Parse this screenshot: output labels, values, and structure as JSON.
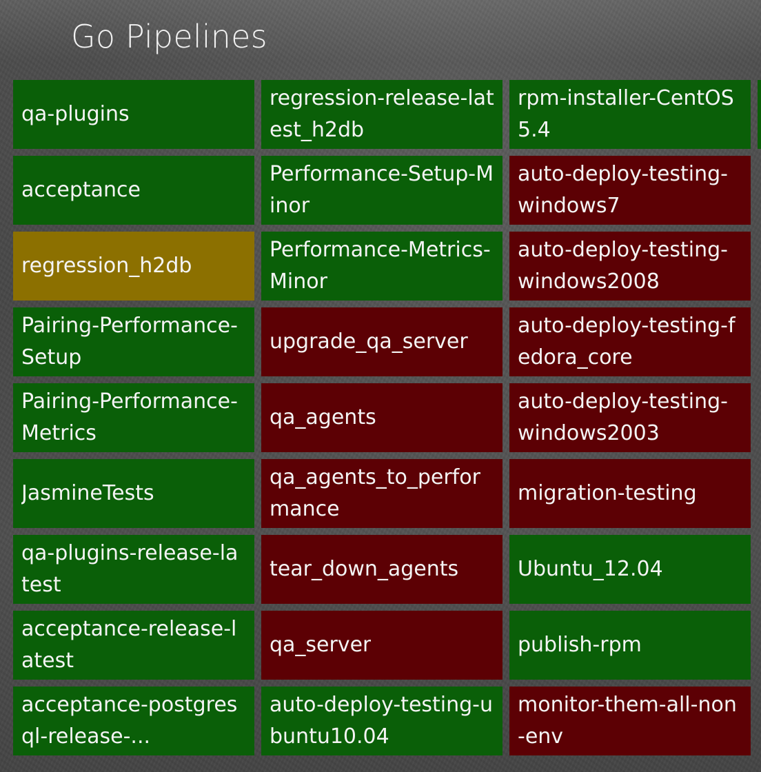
{
  "header": {
    "title": "Go Pipelines"
  },
  "colors": {
    "passed": "#0a5f08",
    "failed": "#5c0004",
    "building": "#8c7000"
  },
  "columns": [
    [
      {
        "name": "qa-plugins",
        "status": "passed"
      },
      {
        "name": "acceptance",
        "status": "passed"
      },
      {
        "name": "regression_h2db",
        "status": "building"
      },
      {
        "name": "Pairing-Performance-Setup",
        "status": "passed"
      },
      {
        "name": "Pairing-Performance-Metrics",
        "status": "passed"
      },
      {
        "name": "JasmineTests",
        "status": "passed"
      },
      {
        "name": "qa-plugins-release-latest",
        "status": "passed"
      },
      {
        "name": "acceptance-release-latest",
        "status": "passed"
      },
      {
        "name": "acceptance-postgresql-release-...",
        "status": "passed"
      }
    ],
    [
      {
        "name": "regression-release-latest_h2db",
        "status": "passed"
      },
      {
        "name": "Performance-Setup-Minor",
        "status": "passed"
      },
      {
        "name": "Performance-Metrics-Minor",
        "status": "passed"
      },
      {
        "name": "upgrade_qa_server",
        "status": "failed"
      },
      {
        "name": "qa_agents",
        "status": "failed"
      },
      {
        "name": "qa_agents_to_performance",
        "status": "failed"
      },
      {
        "name": "tear_down_agents",
        "status": "failed"
      },
      {
        "name": "qa_server",
        "status": "failed"
      },
      {
        "name": "auto-deploy-testing-ubuntu10.04",
        "status": "passed"
      }
    ],
    [
      {
        "name": "rpm-installer-CentOS5.4",
        "status": "passed"
      },
      {
        "name": "auto-deploy-testing-windows7",
        "status": "failed"
      },
      {
        "name": "auto-deploy-testing-windows2008",
        "status": "failed"
      },
      {
        "name": "auto-deploy-testing-fedora_core",
        "status": "failed"
      },
      {
        "name": "auto-deploy-testing-windows2003",
        "status": "failed"
      },
      {
        "name": "migration-testing",
        "status": "failed"
      },
      {
        "name": "Ubuntu_12.04",
        "status": "passed"
      },
      {
        "name": "publish-rpm",
        "status": "passed"
      },
      {
        "name": "monitor-them-all-non-env",
        "status": "failed"
      }
    ]
  ]
}
